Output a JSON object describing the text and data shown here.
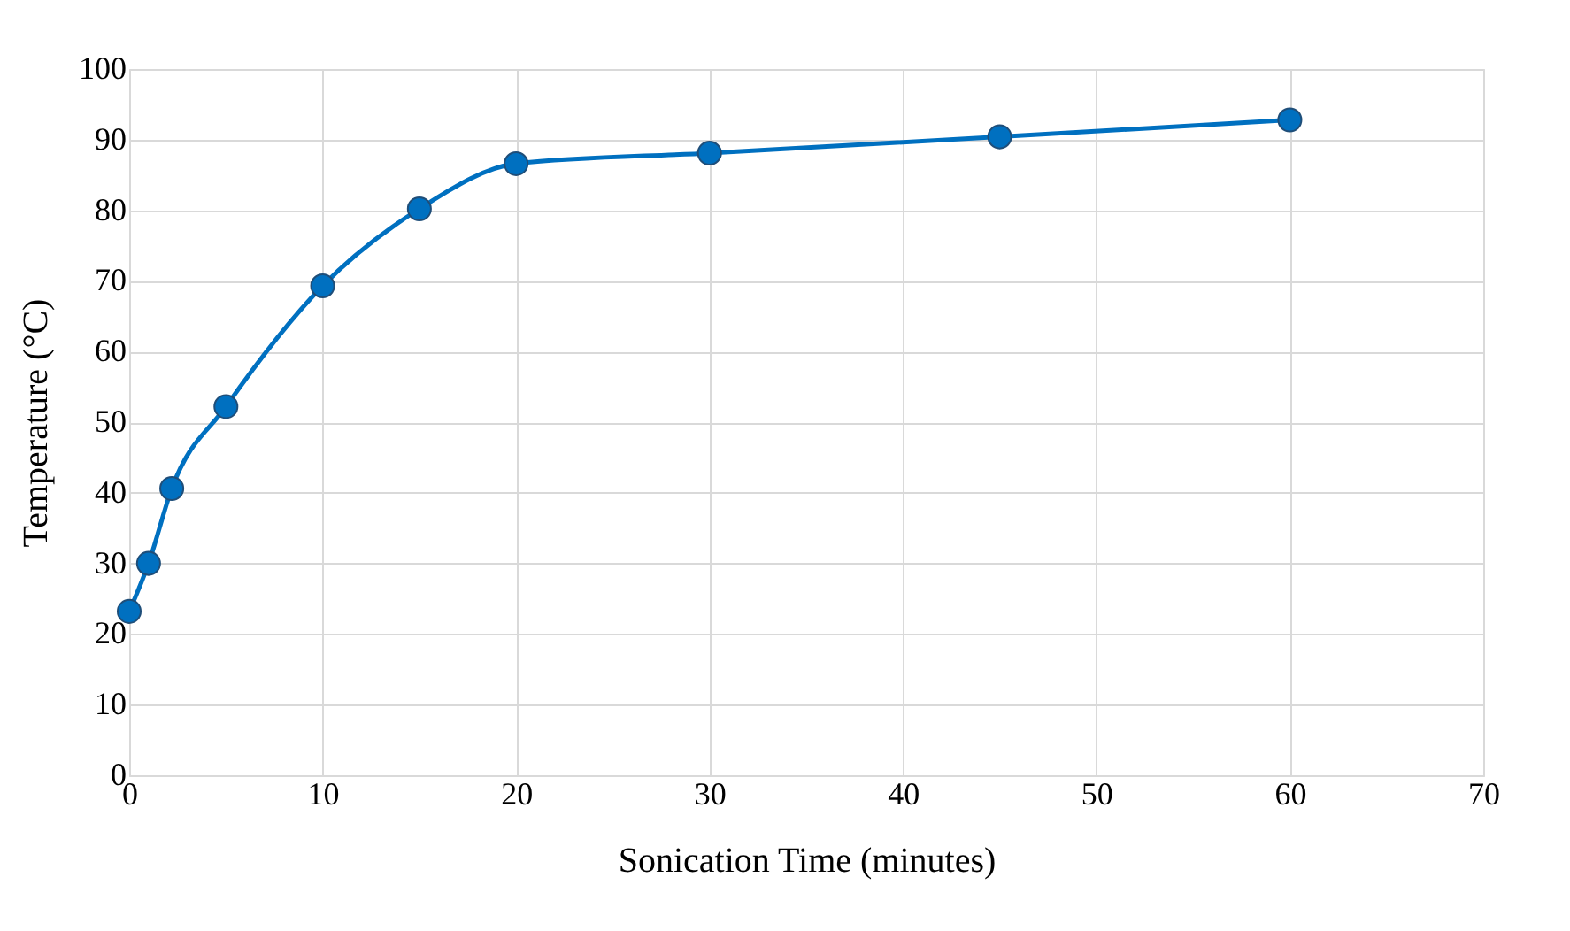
{
  "chart_data": {
    "type": "line",
    "xlabel": "Sonication Time (minutes)",
    "ylabel": "Temperature (°C)",
    "x": [
      0,
      1,
      2.2,
      5,
      10,
      15,
      20,
      30,
      45,
      60
    ],
    "series": [
      {
        "color": "#0070c0",
        "values": [
          23.2,
          30,
          40.6,
          52.2,
          69.3,
          80.2,
          86.6,
          88.1,
          90.4,
          92.8
        ]
      }
    ],
    "xlim": [
      0,
      70
    ],
    "xticks": [
      0,
      10,
      20,
      30,
      40,
      50,
      60,
      70
    ],
    "ylim": [
      0,
      100
    ],
    "yticks": [
      0,
      10,
      20,
      30,
      40,
      50,
      60,
      70,
      80,
      90,
      100
    ],
    "grid": true,
    "marker": "circle",
    "line_style": "solid",
    "legend": false
  }
}
